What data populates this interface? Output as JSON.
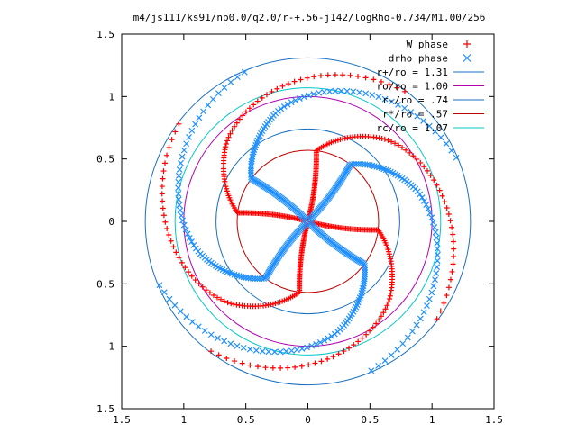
{
  "chart_data": {
    "type": "scatter",
    "title": "m4/js111/ks91/np0.0/q2.0/r-+.56-j142/logRho-0.734/M1.00/256",
    "xlabel": "",
    "ylabel": "",
    "xlim": [
      -1.5,
      1.5
    ],
    "ylim": [
      -1.5,
      1.5
    ],
    "grid": false,
    "legend_position": "top-right",
    "x_ticks": [
      {
        "value": -1.5,
        "label": "1.5"
      },
      {
        "value": -1.0,
        "label": "1"
      },
      {
        "value": -0.5,
        "label": "0.5"
      },
      {
        "value": 0.0,
        "label": "0"
      },
      {
        "value": 0.5,
        "label": "0.5"
      },
      {
        "value": 1.0,
        "label": "1"
      },
      {
        "value": 1.5,
        "label": "1.5"
      }
    ],
    "y_ticks": [
      {
        "value": 1.5,
        "label": "1.5"
      },
      {
        "value": 1.0,
        "label": "1"
      },
      {
        "value": 0.5,
        "label": "0.5"
      },
      {
        "value": 0.0,
        "label": "0"
      },
      {
        "value": -0.5,
        "label": "0.5"
      },
      {
        "value": -1.0,
        "label": "1"
      },
      {
        "value": -1.5,
        "label": "1.5"
      }
    ],
    "series": [
      {
        "name": "W phase",
        "marker": "plus",
        "color": "#ff0000",
        "arms": 4,
        "inner_radius": 0.02,
        "outer_radius": 1.3,
        "start_angle_deg": 75,
        "spiral": "barred"
      },
      {
        "name": "drho phase",
        "marker": "cross",
        "color": "#1f8fff",
        "arms": 4,
        "inner_radius": 0.02,
        "outer_radius": 1.3,
        "start_angle_deg": 135,
        "spiral": "barred"
      }
    ],
    "circles": [
      {
        "label": "r+/ro = 1.31",
        "radius": 1.31,
        "color": "#1a6fc0"
      },
      {
        "label": "ro/ro = 1.00",
        "radius": 1.0,
        "color": "#b000b0"
      },
      {
        "label": "r-/ro = .74",
        "radius": 0.74,
        "color": "#1a6fc0"
      },
      {
        "label": "r*/ro = .57",
        "radius": 0.57,
        "color": "#c00000"
      },
      {
        "label": "rc/ro = 1.07",
        "radius": 1.07,
        "color": "#00c8c8"
      }
    ]
  }
}
